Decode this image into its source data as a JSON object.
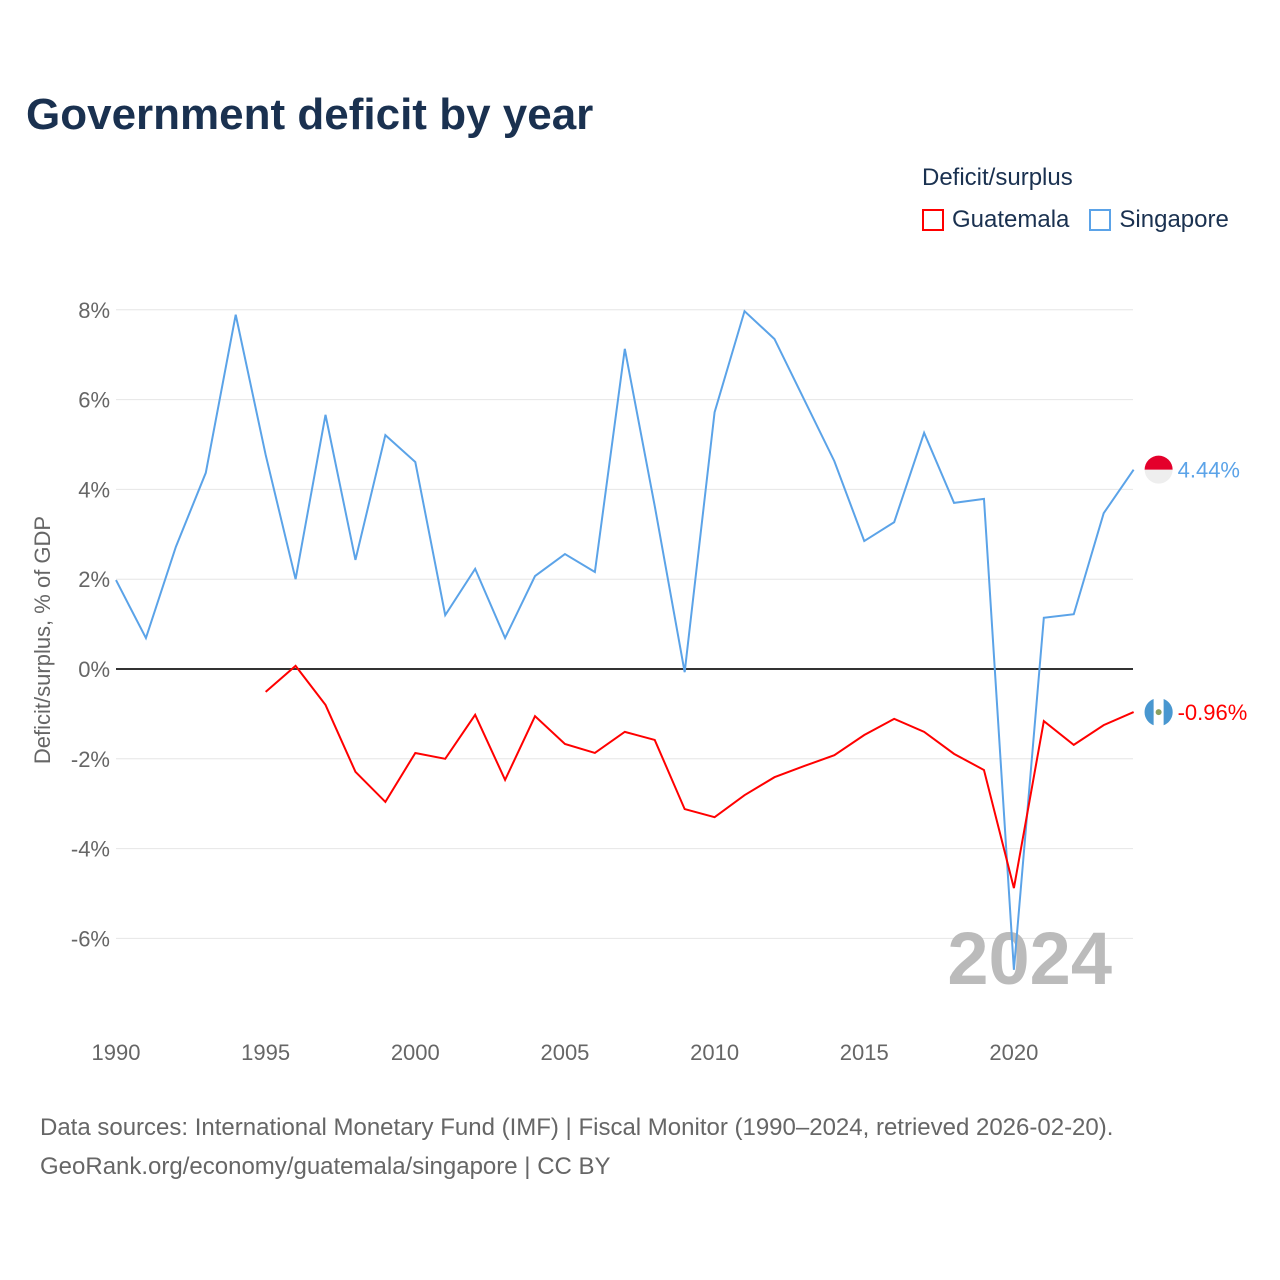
{
  "title": "Government deficit by year",
  "legend": {
    "title": "Deficit/surplus",
    "items": [
      {
        "name": "Guatemala",
        "color": "#ff0000"
      },
      {
        "name": "Singapore",
        "color": "#5ba3e8"
      }
    ]
  },
  "year_label": "2024",
  "source_lines": [
    "Data sources: International Monetary Fund (IMF) | Fiscal Monitor (1990–2024, retrieved 2026-02-20).",
    "GeoRank.org/economy/guatemala/singapore | CC BY"
  ],
  "chart_data": {
    "type": "line",
    "title": "Government deficit by year",
    "xlabel": "",
    "ylabel": "Deficit/surplus, % of GDP",
    "xlim": [
      1990,
      2024
    ],
    "ylim": [
      -8,
      8.5
    ],
    "xticks": [
      1990,
      1995,
      2000,
      2005,
      2010,
      2015,
      2020
    ],
    "xtick_labels": [
      "1990",
      "1995",
      "2000",
      "2005",
      "2010",
      "2015",
      "2020"
    ],
    "yticks": [
      8,
      6,
      4,
      2,
      0,
      -2,
      -4,
      -6
    ],
    "ytick_labels": [
      "8%",
      "6%",
      "4%",
      "2%",
      "0%",
      "-2%",
      "-4%",
      "-6%"
    ],
    "grid": true,
    "legend_position": "top-right",
    "series": [
      {
        "name": "Singapore",
        "color": "#5ba3e8",
        "end_label": "4.44%",
        "x": [
          1990,
          1991,
          1992,
          1993,
          1994,
          1995,
          1996,
          1997,
          1998,
          1999,
          2000,
          2001,
          2002,
          2003,
          2004,
          2005,
          2006,
          2007,
          2008,
          2009,
          2010,
          2011,
          2012,
          2013,
          2014,
          2015,
          2016,
          2017,
          2018,
          2019,
          2020,
          2021,
          2022,
          2023,
          2024
        ],
        "values": [
          1.98,
          0.69,
          2.72,
          4.37,
          7.89,
          4.77,
          2.0,
          5.66,
          2.43,
          5.21,
          4.61,
          1.2,
          2.23,
          0.69,
          2.07,
          2.56,
          2.16,
          7.13,
          3.63,
          -0.07,
          5.72,
          7.97,
          7.35,
          5.99,
          4.63,
          2.85,
          3.27,
          5.26,
          3.7,
          3.79,
          -6.7,
          1.14,
          1.22,
          3.47,
          4.44
        ]
      },
      {
        "name": "Guatemala",
        "color": "#ff0000",
        "end_label": "-0.96%",
        "x": [
          1995,
          1996,
          1997,
          1998,
          1999,
          2000,
          2001,
          2002,
          2003,
          2004,
          2005,
          2006,
          2007,
          2008,
          2009,
          2010,
          2011,
          2012,
          2013,
          2014,
          2015,
          2016,
          2017,
          2018,
          2019,
          2020,
          2021,
          2022,
          2023,
          2024
        ],
        "values": [
          -0.51,
          0.07,
          -0.8,
          -2.29,
          -2.96,
          -1.87,
          -2.0,
          -1.02,
          -2.47,
          -1.05,
          -1.67,
          -1.87,
          -1.4,
          -1.58,
          -3.12,
          -3.3,
          -2.81,
          -2.41,
          -2.16,
          -1.92,
          -1.47,
          -1.11,
          -1.4,
          -1.89,
          -2.25,
          -4.88,
          -1.16,
          -1.69,
          -1.25,
          -0.96
        ]
      }
    ]
  }
}
